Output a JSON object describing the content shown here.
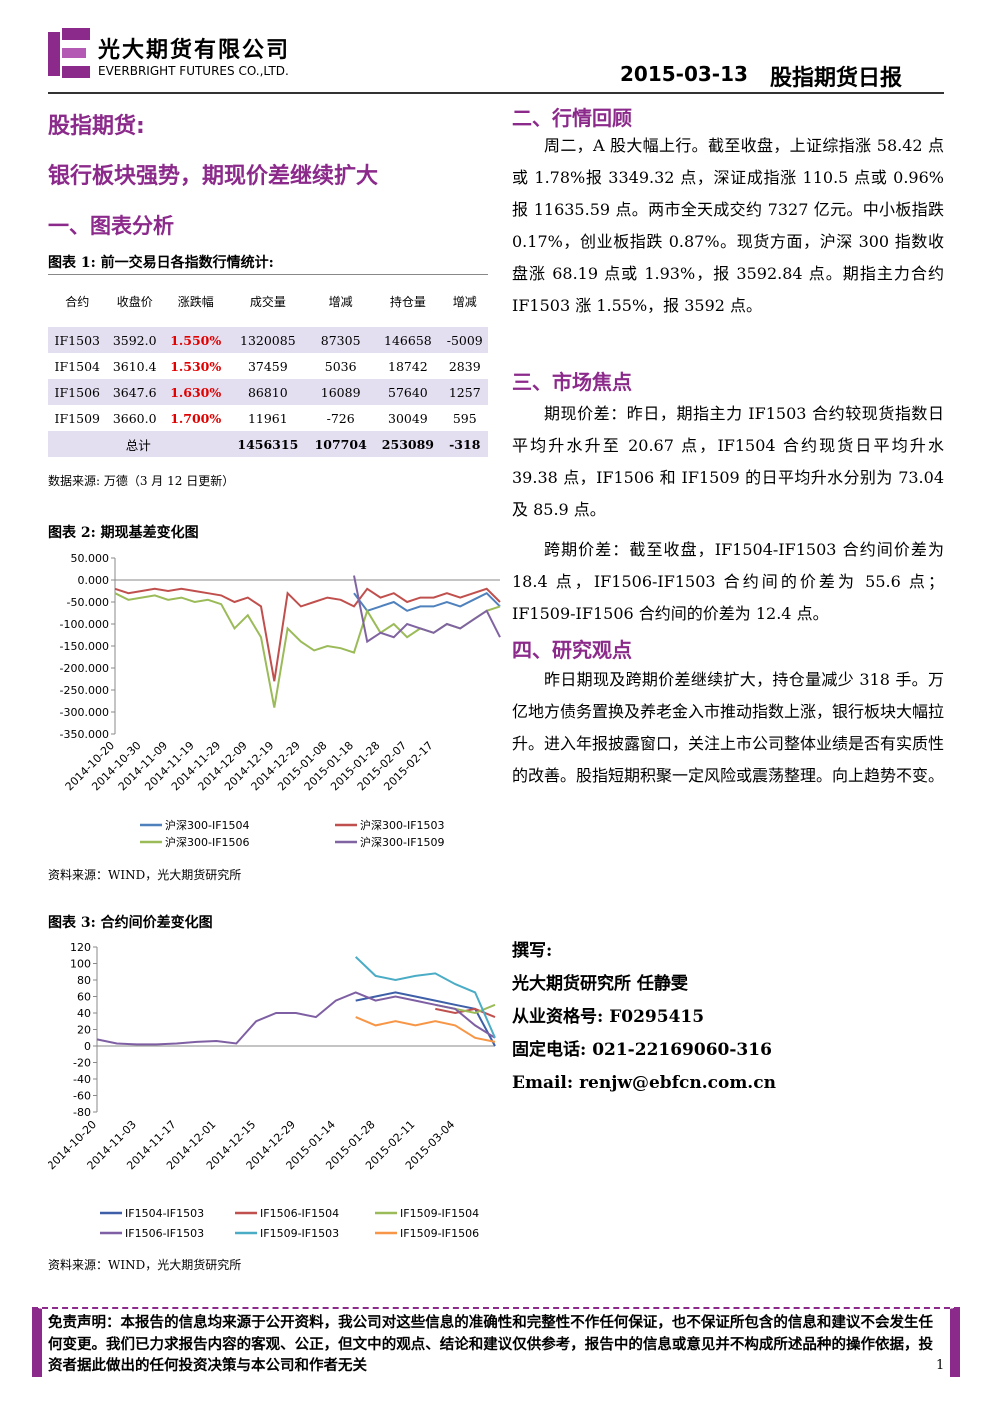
{
  "header": {
    "company_cn": "光大期货有限公司",
    "company_en": "EVERBRIGHT FUTURES CO.,LTD.",
    "date": "2015-03-13",
    "report": "股指期货日报"
  },
  "left": {
    "section": "股指期货:",
    "headline": "银行板块强势，期现价差继续扩大",
    "s1": "一、图表分析"
  },
  "table1": {
    "caption": "图表 1:  前一交易日各指数行情统计:",
    "headers": [
      "合约",
      "收盘价",
      "涨跌幅",
      "成交量",
      "增减",
      "持仓量",
      "增减"
    ],
    "rows": [
      [
        "IF1503",
        "3592.0",
        "1.550%",
        "1320085",
        "87305",
        "146658",
        "-5009"
      ],
      [
        "IF1504",
        "3610.4",
        "1.530%",
        "37459",
        "5036",
        "18742",
        "2839"
      ],
      [
        "IF1506",
        "3647.6",
        "1.630%",
        "86810",
        "16089",
        "57640",
        "1257"
      ],
      [
        "IF1509",
        "3660.0",
        "1.700%",
        "11961",
        "-726",
        "30049",
        "595"
      ]
    ],
    "total": {
      "label": "总计",
      "values": [
        "1456315",
        "107704",
        "253089",
        "-318"
      ]
    },
    "source": "数据来源: 万德（3 月 12 日更新）"
  },
  "chart_data": [
    {
      "type": "line",
      "title": "图表 2: 期现基差变化图",
      "categories": [
        "2014-10-20",
        null,
        "2014-10-30",
        null,
        "2014-11-09",
        null,
        "2014-11-19",
        null,
        "2014-11-29",
        null,
        "2014-12-09",
        null,
        "2014-12-19",
        null,
        "2014-12-29",
        null,
        "2015-01-08",
        null,
        "2015-01-18",
        null,
        "2015-01-28",
        null,
        "2015-02-07",
        null,
        "2015-02-17",
        null,
        null,
        null,
        null,
        null
      ],
      "ylim": [
        -350,
        50
      ],
      "yticks": [
        {
          "value": 50,
          "label": "50.000"
        },
        {
          "value": 0,
          "label": "0.000"
        },
        {
          "value": -50,
          "label": "-50.000"
        },
        {
          "value": -100,
          "label": "-100.000"
        },
        {
          "value": -150,
          "label": "-150.000"
        },
        {
          "value": -200,
          "label": "-200.000"
        },
        {
          "value": -250,
          "label": "-250.000"
        },
        {
          "value": -300,
          "label": "-300.000"
        },
        {
          "value": -350,
          "label": "-350.000"
        }
      ],
      "grid": false,
      "series": [
        {
          "name": "沪深300-IF1504",
          "color": "#4f81bd",
          "values": [
            null,
            null,
            null,
            null,
            null,
            null,
            null,
            null,
            null,
            null,
            null,
            null,
            null,
            null,
            null,
            null,
            null,
            null,
            -30,
            -70,
            -60,
            -50,
            -70,
            -60,
            -60,
            -50,
            -60,
            -45,
            -30,
            -60
          ]
        },
        {
          "name": "沪深300-IF1503",
          "color": "#c0504d",
          "values": [
            -20,
            -30,
            -25,
            -20,
            -25,
            -20,
            -25,
            -30,
            -35,
            -50,
            -40,
            -60,
            -230,
            -30,
            -60,
            -50,
            -40,
            -45,
            -60,
            -20,
            -40,
            -30,
            -50,
            -40,
            -40,
            -30,
            -40,
            -30,
            -20,
            -50
          ]
        },
        {
          "name": "沪深300-IF1506",
          "color": "#9bbb59",
          "values": [
            -30,
            -45,
            -40,
            -35,
            -45,
            -40,
            -50,
            -45,
            -55,
            -110,
            -80,
            -130,
            -290,
            -110,
            -140,
            -160,
            -150,
            -155,
            -165,
            -70,
            -120,
            -100,
            -130,
            -110,
            -120,
            -100,
            -110,
            -90,
            -70,
            -60
          ]
        },
        {
          "name": "沪深300-IF1509",
          "color": "#8064a2",
          "values": [
            null,
            null,
            null,
            null,
            null,
            null,
            null,
            null,
            null,
            null,
            null,
            null,
            null,
            null,
            null,
            null,
            null,
            null,
            10,
            -140,
            -120,
            -130,
            -100,
            -110,
            -120,
            -100,
            -110,
            -90,
            -70,
            -130
          ]
        }
      ],
      "source": "资料来源：WIND，光大期货研究所"
    },
    {
      "type": "line",
      "title": "图表 3: 合约间价差变化图",
      "categories": [
        "2014-10-20",
        null,
        "2014-11-03",
        null,
        "2014-11-17",
        null,
        "2014-12-01",
        null,
        "2014-12-15",
        null,
        "2014-12-29",
        null,
        "2015-01-14",
        null,
        "2015-01-28",
        null,
        "2015-02-11",
        null,
        "2015-03-04",
        null,
        null
      ],
      "ylim": [
        -80,
        120
      ],
      "yticks": [
        120,
        100,
        80,
        60,
        40,
        20,
        0,
        -20,
        -40,
        -60,
        -80
      ],
      "grid": false,
      "series": [
        {
          "name": "IF1504-IF1503",
          "color": "#3e5fa8",
          "values": [
            null,
            null,
            null,
            null,
            null,
            null,
            null,
            null,
            null,
            null,
            null,
            null,
            null,
            55,
            60,
            65,
            60,
            55,
            50,
            45,
            0
          ]
        },
        {
          "name": "IF1506-IF1504",
          "color": "#c0504d",
          "values": [
            null,
            null,
            null,
            null,
            null,
            null,
            null,
            null,
            null,
            null,
            null,
            null,
            null,
            null,
            null,
            null,
            null,
            45,
            40,
            45,
            35
          ]
        },
        {
          "name": "IF1509-IF1504",
          "color": "#9bbb59",
          "values": [
            null,
            null,
            null,
            null,
            null,
            null,
            null,
            null,
            null,
            null,
            null,
            null,
            null,
            null,
            null,
            null,
            null,
            50,
            45,
            40,
            50
          ]
        },
        {
          "name": "IF1506-IF1503",
          "color": "#7f5fa3",
          "values": [
            8,
            3,
            2,
            2,
            3,
            5,
            6,
            3,
            30,
            40,
            40,
            35,
            55,
            65,
            55,
            60,
            55,
            50,
            45,
            25,
            10
          ]
        },
        {
          "name": "IF1509-IF1503",
          "color": "#4bacc6",
          "values": [
            null,
            null,
            null,
            null,
            null,
            null,
            null,
            null,
            null,
            null,
            null,
            null,
            null,
            108,
            85,
            80,
            85,
            88,
            75,
            65,
            10
          ]
        },
        {
          "name": "IF1509-IF1506",
          "color": "#f79646",
          "values": [
            null,
            null,
            null,
            null,
            null,
            null,
            null,
            null,
            null,
            null,
            null,
            null,
            null,
            35,
            25,
            30,
            25,
            30,
            25,
            10,
            5
          ]
        }
      ],
      "source": "资料来源：WIND，光大期货研究所"
    }
  ],
  "right": {
    "s2": "二、行情回顾",
    "p2": "周二，A 股大幅上行。截至收盘，上证综指涨 58.42 点或 1.78%报 3349.32 点，深证成指涨 110.5 点或 0.96%报 11635.59 点。两市全天成交约 7327 亿元。中小板指跌 0.17%，创业板指跌 0.87%。现货方面，沪深 300 指数收盘涨 68.19 点或 1.93%，报 3592.84 点。期指主力合约 IF1503 涨 1.55%，报 3592 点。",
    "s3": "三、市场焦点",
    "p3a": "期现价差：昨日，期指主力 IF1503 合约较现货指数日平均升水升至 20.67 点，IF1504 合约现货日平均升水 39.38 点，IF1506 和 IF1509 的日平均升水分别为 73.04 及 85.9 点。",
    "p3b": "跨期价差：截至收盘，IF1504-IF1503 合约间价差为 18.4 点，IF1506-IF1503 合约间的价差为 55.6 点；IF1509-IF1506 合约间的价差为 12.4 点。",
    "s4": "四、研究观点",
    "p4": "昨日期现及跨期价差继续扩大，持仓量减少 318 手。万亿地方债务置换及养老金入市推动指数上涨，银行板块大幅拉升。进入年报披露窗口，关注上市公司整体业绩是否有实质性的改善。股指短期积聚一定风险或震荡整理。向上趋势不变。"
  },
  "author": {
    "label": "撰写:",
    "name": "光大期货研究所 任静雯",
    "license": "从业资格号:  F0295415",
    "phone": "固定电话:  021-22169060-316",
    "email": "Email:  renjw@ebfcn.com.cn"
  },
  "footer": {
    "disclaimer": "免责声明：本报告的信息均来源于公开资料，我公司对这些信息的准确性和完整性不作任何保证，也不保证所包含的信息和建议不会发生任何变更。我们已力求报告内容的客观、公正，但文中的观点、结论和建议仅供参考，报告中的信息或意见并不构成所述品种的操作依据，投资者据此做出的任何投资决策与本公司和作者无关",
    "page": "1"
  }
}
